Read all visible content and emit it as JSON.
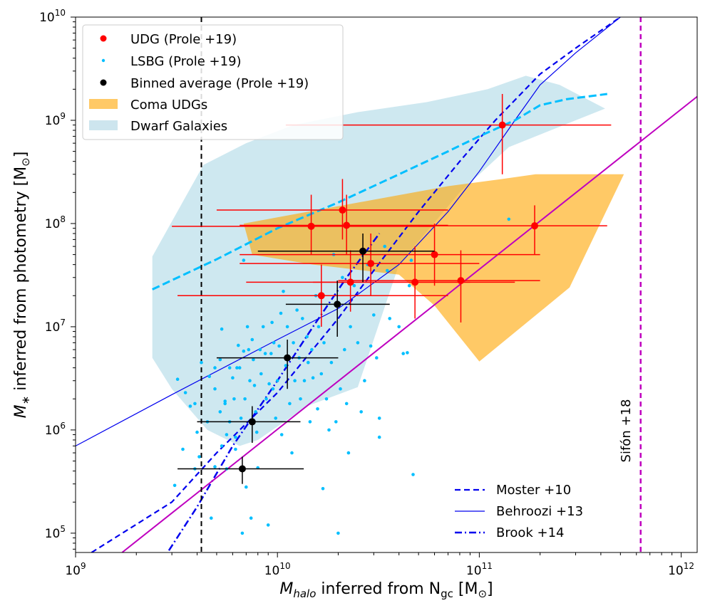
{
  "chart_data": {
    "type": "scatter",
    "xscale": "log",
    "yscale": "log",
    "xlim": [
      1000000000.0,
      1200000000000.0
    ],
    "ylim": [
      65000.0,
      10000000000.0
    ],
    "xlabel": "M_halo inferred from N_gc [M⊙]",
    "xlabel_parts": {
      "italic": "M",
      "sub": "halo",
      "rest": " inferred from N",
      "sub2": "gc",
      "tail": " [M",
      "sun": "⊙",
      "close": "]"
    },
    "ylabel_parts": {
      "italic": "M",
      "sub": "∗",
      "rest": " inferred from photometry [M",
      "sun": "⊙",
      "close": "]"
    },
    "x_ticks": [
      {
        "value": 1000000000.0,
        "base": "10",
        "exp": "9"
      },
      {
        "value": 10000000000.0,
        "base": "10",
        "exp": "10"
      },
      {
        "value": 100000000000.0,
        "base": "10",
        "exp": "11"
      },
      {
        "value": 1000000000000.0,
        "base": "10",
        "exp": "12"
      }
    ],
    "y_ticks": [
      {
        "value": 100000.0,
        "base": "10",
        "exp": "5"
      },
      {
        "value": 1000000.0,
        "base": "10",
        "exp": "6"
      },
      {
        "value": 10000000.0,
        "base": "10",
        "exp": "7"
      },
      {
        "value": 100000000.0,
        "base": "10",
        "exp": "8"
      },
      {
        "value": 1000000000.0,
        "base": "10",
        "exp": "9"
      },
      {
        "value": 10000000000.0,
        "base": "10",
        "exp": "10"
      }
    ],
    "legend_top_left": [
      {
        "label": "UDG (Prole  +19)",
        "marker": "dot-large",
        "color": "#ff0000"
      },
      {
        "label": "LSBG (Prole +19)",
        "marker": "dot-small",
        "color": "#00bfff"
      },
      {
        "label": "Binned average (Prole +19)",
        "marker": "dot-large",
        "color": "#000000"
      },
      {
        "label": "Coma UDGs",
        "marker": "patch",
        "color": "#ffc966"
      },
      {
        "label": "Dwarf Galaxies",
        "marker": "patch",
        "color": "#cde5ee"
      }
    ],
    "legend_bottom_right": [
      {
        "label": "Moster +10",
        "style": "dashed",
        "color": "#0000ee"
      },
      {
        "label": "Behroozi +13",
        "style": "solid-thin",
        "color": "#0000ee"
      },
      {
        "label": "Brook +14",
        "style": "dashdot",
        "color": "#0000ee"
      }
    ],
    "vertical_lines": [
      {
        "x": 4200000000.0,
        "color": "#000000",
        "style": "dashed"
      },
      {
        "x": 630000000000.0,
        "color": "#bf00bf",
        "style": "dashed",
        "label": "Sifón +18"
      }
    ],
    "dwarf_region": [
      [
        2400000000.0,
        48000000.0
      ],
      [
        4300000000.0,
        370000000.0
      ],
      [
        7000000000.0,
        600000000.0
      ],
      [
        12000000000.0,
        900000000.0
      ],
      [
        25000000000.0,
        1200000000.0
      ],
      [
        55000000000.0,
        1500000000.0
      ],
      [
        110000000000.0,
        2000000000.0
      ],
      [
        170000000000.0,
        2700000000.0
      ],
      [
        250000000000.0,
        2200000000.0
      ],
      [
        420000000000.0,
        1300000000.0
      ],
      [
        300000000000.0,
        1000000000.0
      ],
      [
        140000000000.0,
        550000000.0
      ],
      [
        80000000000.0,
        200000000.0
      ],
      [
        40000000000.0,
        40000000.0
      ],
      [
        25000000000.0,
        2600000.0
      ],
      [
        14000000000.0,
        1700000.0
      ],
      [
        8000000000.0,
        800000.0
      ],
      [
        6500000000.0,
        700000.0
      ],
      [
        4500000000.0,
        1000000.0
      ],
      [
        3000000000.0,
        2500000.0
      ],
      [
        2400000000.0,
        5000000.0
      ]
    ],
    "coma_region": [
      [
        6800000000.0,
        100000000.0
      ],
      [
        30000000000.0,
        170000000.0
      ],
      [
        70000000000.0,
        230000000.0
      ],
      [
        130000000000.0,
        270000000.0
      ],
      [
        190000000000.0,
        300000000.0
      ],
      [
        520000000000.0,
        300000000.0
      ],
      [
        280000000000.0,
        24000000.0
      ],
      [
        100000000000.0,
        4600000.0
      ],
      [
        60000000000.0,
        16000000.0
      ],
      [
        40000000000.0,
        32000000.0
      ],
      [
        15000000000.0,
        40000000.0
      ],
      [
        7500000000.0,
        50000000.0
      ]
    ],
    "curves": [
      {
        "name": "Moster +10",
        "color": "#0000ee",
        "style": "dashed",
        "width": 2.2,
        "points": [
          [
            1200000000.0,
            65000.0
          ],
          [
            3000000000.0,
            200000.0
          ],
          [
            5000000000.0,
            600000.0
          ],
          [
            10000000000.0,
            2300000.0
          ],
          [
            20000000000.0,
            12000000.0
          ],
          [
            30000000000.0,
            35000000.0
          ],
          [
            50000000000.0,
            130000000.0
          ],
          [
            80000000000.0,
            400000000.0
          ],
          [
            120000000000.0,
            1000000000.0
          ],
          [
            200000000000.0,
            2800000000.0
          ],
          [
            300000000000.0,
            5000000000.0
          ],
          [
            500000000000.0,
            10000000000.0
          ]
        ]
      },
      {
        "name": "Behroozi +13",
        "color": "#0000ee",
        "style": "solid",
        "width": 1.2,
        "points": [
          [
            1000000000.0,
            700000.0
          ],
          [
            3000000000.0,
            2200000.0
          ],
          [
            10000000000.0,
            7500000.0
          ],
          [
            20000000000.0,
            15000000.0
          ],
          [
            40000000000.0,
            40000000.0
          ],
          [
            70000000000.0,
            130000000.0
          ],
          [
            100000000000.0,
            320000000.0
          ],
          [
            150000000000.0,
            1000000000.0
          ],
          [
            200000000000.0,
            2200000000.0
          ],
          [
            300000000000.0,
            4500000000.0
          ],
          [
            500000000000.0,
            10000000000.0
          ]
        ]
      },
      {
        "name": "Brook +14",
        "color": "#0000ee",
        "style": "dashdot",
        "width": 2.5,
        "points": [
          [
            2900000000.0,
            68000.0
          ],
          [
            4000000000.0,
            180000.0
          ],
          [
            6000000000.0,
            700000.0
          ],
          [
            10000000000.0,
            3000000.0
          ],
          [
            15000000000.0,
            10000000.0
          ],
          [
            22000000000.0,
            30000000.0
          ],
          [
            32000000000.0,
            80000000.0
          ]
        ]
      },
      {
        "name": "Prole cyan",
        "color": "#00bfff",
        "style": "dashed-thick",
        "width": 3,
        "points": [
          [
            2400000000.0,
            23000000.0
          ],
          [
            5000000000.0,
            45000000.0
          ],
          [
            10000000000.0,
            90000000.0
          ],
          [
            20000000000.0,
            160000000.0
          ],
          [
            40000000000.0,
            300000000.0
          ],
          [
            70000000000.0,
            500000000.0
          ],
          [
            100000000000.0,
            700000000.0
          ],
          [
            150000000000.0,
            1000000000.0
          ],
          [
            200000000000.0,
            1400000000.0
          ],
          [
            270000000000.0,
            1600000000.0
          ],
          [
            430000000000.0,
            1800000000.0
          ]
        ]
      },
      {
        "name": "magenta relation",
        "color": "#bf00bf",
        "style": "solid",
        "width": 2,
        "points": [
          [
            1700000000.0,
            65000.0
          ],
          [
            1200000000000.0,
            1700000000.0
          ]
        ]
      }
    ],
    "udg_points": [
      {
        "x": 130000000000.0,
        "y": 900000000.0,
        "xmin": 11000000000.0,
        "xmax": 450000000000.0,
        "ymin": 300000000.0,
        "ymax": 1800000000.0
      },
      {
        "x": 188000000000.0,
        "y": 95000000.0,
        "xmin": 50000000000.0,
        "xmax": 430000000000.0,
        "ymin": 50000000.0,
        "ymax": 150000000.0
      },
      {
        "x": 14700000000.0,
        "y": 94000000.0,
        "xmin": 3000000000.0,
        "xmax": 60000000000.0,
        "ymin": 50000000.0,
        "ymax": 190000000.0
      },
      {
        "x": 21000000000.0,
        "y": 135000000.0,
        "xmin": 5000000000.0,
        "xmax": 70000000000.0,
        "ymin": 70000000.0,
        "ymax": 270000000.0
      },
      {
        "x": 22000000000.0,
        "y": 96000000.0,
        "xmin": 6500000000.0,
        "xmax": 70000000000.0,
        "ymin": 50000000.0,
        "ymax": 190000000.0
      },
      {
        "x": 60000000000.0,
        "y": 50000000.0,
        "xmin": 6500000000.0,
        "xmax": 200000000000.0,
        "ymin": 25000000.0,
        "ymax": 100000000.0
      },
      {
        "x": 29000000000.0,
        "y": 41000000.0,
        "xmin": 6500000000.0,
        "xmax": 100000000000.0,
        "ymin": 20000000.0,
        "ymax": 80000000.0
      },
      {
        "x": 16500000000.0,
        "y": 20000000.0,
        "xmin": 3200000000.0,
        "xmax": 70000000000.0,
        "ymin": 10000000.0,
        "ymax": 40000000.0
      },
      {
        "x": 23000000000.0,
        "y": 27000000.0,
        "xmin": 7000000000.0,
        "xmax": 90000000000.0,
        "ymin": 14000000.0,
        "ymax": 55000000.0
      },
      {
        "x": 48000000000.0,
        "y": 27000000.0,
        "xmin": 15000000000.0,
        "xmax": 150000000000.0,
        "ymin": 12000000.0,
        "ymax": 60000000.0
      },
      {
        "x": 81000000000.0,
        "y": 28000000.0,
        "xmin": 20000000000.0,
        "xmax": 200000000000.0,
        "ymin": 11000000.0,
        "ymax": 55000000.0
      }
    ],
    "binned_points": [
      {
        "x": 26500000000.0,
        "y": 54000000.0,
        "xmin": 8000000000.0,
        "xmax": 60000000000.0,
        "ymin": 27000000.0,
        "ymax": 80000000.0
      },
      {
        "x": 19800000000.0,
        "y": 16500000.0,
        "xmin": 11000000000.0,
        "xmax": 36000000000.0,
        "ymin": 8000000.0,
        "ymax": 28000000.0
      },
      {
        "x": 11200000000.0,
        "y": 5000000.0,
        "xmin": 5000000000.0,
        "xmax": 20000000000.0,
        "ymin": 2500000.0,
        "ymax": 7500000.0
      },
      {
        "x": 7500000000.0,
        "y": 1200000.0,
        "xmin": 4000000000.0,
        "xmax": 13000000000.0,
        "ymin": 750000.0,
        "ymax": 1700000.0
      },
      {
        "x": 6700000000.0,
        "y": 420000.0,
        "xmin": 3200000000.0,
        "xmax": 13500000000.0,
        "ymin": 300000.0,
        "ymax": 550000.0
      }
    ],
    "lsbg_points": [
      [
        3200000000.0,
        3100000.0
      ],
      [
        3500000000.0,
        2300000.0
      ],
      [
        3400000000.0,
        650000.0
      ],
      [
        3700000000.0,
        1700000.0
      ],
      [
        3900000000.0,
        1800000.0
      ],
      [
        4000000000.0,
        950000.0
      ],
      [
        3900000000.0,
        420000.0
      ],
      [
        3100000000.0,
        290000.0
      ],
      [
        4100000000.0,
        550000.0
      ],
      [
        4200000000.0,
        4500000.0
      ],
      [
        4500000000.0,
        1200000.0
      ],
      [
        4600000000.0,
        3300000.0
      ],
      [
        4700000000.0,
        140000.0
      ],
      [
        4900000000.0,
        4000000.0
      ],
      [
        4900000000.0,
        2500000.0
      ],
      [
        4900000000.0,
        440000.0
      ],
      [
        5200000000.0,
        4800000.0
      ],
      [
        5200000000.0,
        1500000.0
      ],
      [
        5300000000.0,
        9500000.0
      ],
      [
        5300000000.0,
        700000.0
      ],
      [
        5500000000.0,
        1900000.0
      ],
      [
        5600000000.0,
        420000.0
      ],
      [
        5600000000.0,
        900000.0
      ],
      [
        5800000000.0,
        1200000.0
      ],
      [
        6000000000.0,
        3200000.0
      ],
      [
        6100000000.0,
        2000000.0
      ],
      [
        6200000000.0,
        850000.0
      ],
      [
        6300000000.0,
        4000000.0
      ],
      [
        6400000000.0,
        6600000.0
      ],
      [
        6500000000.0,
        4000000.0
      ],
      [
        6600000000.0,
        1300000.0
      ],
      [
        6700000000.0,
        100000.0
      ],
      [
        6800000000.0,
        5800000.0
      ],
      [
        6800000000.0,
        44000000.0
      ],
      [
        6900000000.0,
        2000000.0
      ],
      [
        7000000000.0,
        280000.0
      ],
      [
        7100000000.0,
        10000000.0
      ],
      [
        7200000000.0,
        6000000.0
      ],
      [
        7300000000.0,
        3000000.0
      ],
      [
        7400000000.0,
        140000.0
      ],
      [
        7500000000.0,
        7500000.0
      ],
      [
        7600000000.0,
        4800000.0
      ],
      [
        7700000000.0,
        2700000.0
      ],
      [
        7800000000.0,
        1500000.0
      ],
      [
        7900000000.0,
        950000.0
      ],
      [
        8000000000.0,
        430000.0
      ],
      [
        8200000000.0,
        6000000.0
      ],
      [
        8300000000.0,
        3500000.0
      ],
      [
        8500000000.0,
        10000000.0
      ],
      [
        8700000000.0,
        5500000.0
      ],
      [
        8800000000.0,
        2000000.0
      ],
      [
        9000000000.0,
        120000.0
      ],
      [
        9100000000.0,
        2800000.0
      ],
      [
        9300000000.0,
        5500000.0
      ],
      [
        9400000000.0,
        11000000.0
      ],
      [
        9600000000.0,
        7000000.0
      ],
      [
        9800000000.0,
        1300000.0
      ],
      [
        10000000000.0,
        3000000.0
      ],
      [
        10200000000.0,
        6500000.0
      ],
      [
        10400000000.0,
        13500000.0
      ],
      [
        10500000000.0,
        900000.0
      ],
      [
        10700000000.0,
        22000000.0
      ],
      [
        11000000000.0,
        4200000.0
      ],
      [
        11200000000.0,
        10000000.0
      ],
      [
        11500000000.0,
        1800000.0
      ],
      [
        11800000000.0,
        600000.0
      ],
      [
        12000000000.0,
        7000000.0
      ],
      [
        12200000000.0,
        3000000.0
      ],
      [
        12500000000.0,
        14500000.0
      ],
      [
        12800000000.0,
        5000000.0
      ],
      [
        13000000000.0,
        2000000.0
      ],
      [
        13300000000.0,
        12000000.0
      ],
      [
        13600000000.0,
        3000000.0
      ],
      [
        14000000000.0,
        8000000.0
      ],
      [
        14200000000.0,
        4500000.0
      ],
      [
        14500000000.0,
        1200000.0
      ],
      [
        14800000000.0,
        6000000.0
      ],
      [
        15000000000.0,
        3200000.0
      ],
      [
        15500000000.0,
        20000000.0
      ],
      [
        15800000000.0,
        1600000.0
      ],
      [
        16000000000.0,
        10000000.0
      ],
      [
        16500000000.0,
        3500000.0
      ],
      [
        16800000000.0,
        270000.0
      ],
      [
        17000000000.0,
        7000000.0
      ],
      [
        17500000000.0,
        2000000.0
      ],
      [
        18000000000.0,
        1000000.0
      ],
      [
        18500000000.0,
        4500000.0
      ],
      [
        19000000000.0,
        50000000.0
      ],
      [
        19500000000.0,
        1200000.0
      ],
      [
        20000000000.0,
        100000.0
      ],
      [
        20500000000.0,
        2500000.0
      ],
      [
        21000000000.0,
        30000000.0
      ],
      [
        21500000000.0,
        6000000.0
      ],
      [
        22000000000.0,
        1800000.0
      ],
      [
        22500000000.0,
        600000.0
      ],
      [
        23000000000.0,
        10000000.0
      ],
      [
        24000000000.0,
        25000000.0
      ],
      [
        25000000000.0,
        7000000.0
      ],
      [
        26000000000.0,
        1500000.0
      ],
      [
        27000000000.0,
        3000000.0
      ],
      [
        28000000000.0,
        40000000.0
      ],
      [
        29000000000.0,
        6500000.0
      ],
      [
        30000000000.0,
        13000000.0
      ],
      [
        31000000000.0,
        5000000.0
      ],
      [
        32000000000.0,
        1300000.0
      ],
      [
        32000000000.0,
        850000.0
      ],
      [
        34000000000.0,
        60000000.0
      ],
      [
        35000000000.0,
        35000000.0
      ],
      [
        36000000000.0,
        12000000.0
      ],
      [
        40000000000.0,
        10000000.0
      ],
      [
        42000000000.0,
        5500000.0
      ],
      [
        44000000000.0,
        5600000.0
      ],
      [
        45000000000.0,
        25000000.0
      ],
      [
        46000000000.0,
        44000000.0
      ],
      [
        47000000000.0,
        370000.0
      ],
      [
        140000000000.0,
        110000000.0
      ],
      [
        5800000000.0,
        4000000.0
      ],
      [
        5500000000.0,
        1800000.0
      ],
      [
        6200000000.0,
        650000.0
      ],
      [
        9500000000.0,
        2500000.0
      ]
    ]
  }
}
